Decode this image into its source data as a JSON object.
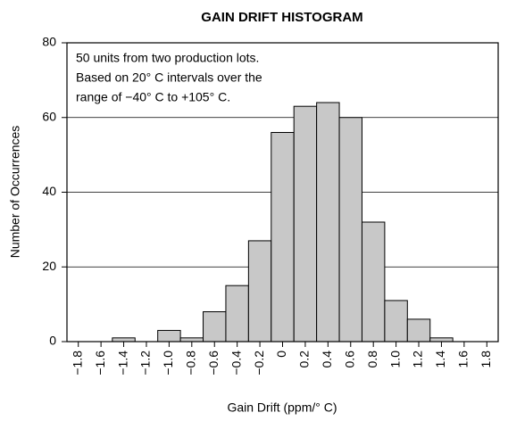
{
  "chart_data": {
    "type": "histogram",
    "title": "GAIN DRIFT HISTOGRAM",
    "x_label": "Gain Drift (ppm/° C)",
    "y_label": "Number of Occurrences",
    "annotation": [
      "50 units from two production lots.",
      "Based on 20° C intervals over the",
      "range of −40° C to +105° C."
    ],
    "bins": [
      -1.9,
      -1.7,
      -1.5,
      -1.3,
      -1.1,
      -0.9,
      -0.7,
      -0.5,
      -0.3,
      -0.1,
      0.1,
      0.3,
      0.5,
      0.7,
      0.9,
      1.1,
      1.3,
      1.5,
      1.7,
      1.9
    ],
    "counts": [
      0,
      0,
      1,
      0,
      3,
      1,
      8,
      15,
      27,
      56,
      63,
      64,
      60,
      32,
      11,
      6,
      1,
      0,
      0
    ],
    "color": "#c8c8c8",
    "xlim": [
      -1.9,
      1.9
    ],
    "xticks": [
      {
        "value": -1.8,
        "label": "−1.8"
      },
      {
        "value": -1.6,
        "label": "−1.6"
      },
      {
        "value": -1.4,
        "label": "−1.4"
      },
      {
        "value": -1.2,
        "label": "−1.2"
      },
      {
        "value": -1.0,
        "label": "−1.0"
      },
      {
        "value": -0.8,
        "label": "−0.8"
      },
      {
        "value": -0.6,
        "label": "−0.6"
      },
      {
        "value": -0.4,
        "label": "−0.4"
      },
      {
        "value": -0.2,
        "label": "−0.2"
      },
      0,
      0.2,
      0.4,
      0.6,
      0.8,
      {
        "value": 1.0,
        "label": "1.0"
      },
      1.2,
      1.4,
      1.6,
      1.8
    ],
    "ylim": [
      0,
      80
    ],
    "yticks": [
      0,
      20,
      40,
      60,
      80
    ],
    "grid": true
  }
}
